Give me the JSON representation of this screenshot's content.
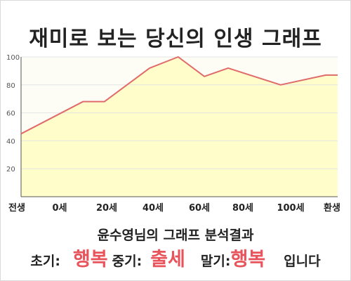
{
  "title": "재미로 보는 당신의 인생 그래프",
  "chart_data": {
    "type": "area",
    "x_tick_labels": [
      "전생",
      "0세",
      "20세",
      "40세",
      "60세",
      "80세",
      "100세",
      "환생"
    ],
    "x": [
      0,
      13,
      17.5,
      27,
      33,
      38.5,
      43.5,
      54.5,
      64,
      66.5
    ],
    "values": [
      45,
      68,
      68,
      92,
      100,
      86,
      92,
      80,
      87,
      87
    ],
    "ylim": [
      0,
      100
    ],
    "y_ticks": [
      20,
      40,
      60,
      80,
      100
    ],
    "grid": true,
    "colors": {
      "line": "#e06b6b",
      "fill": "#fffdc9",
      "grid": "#e4e4e4"
    }
  },
  "summary": {
    "heading": "윤수영님의 그래프 분석결과",
    "early_label": "초기:",
    "early_value": "행복",
    "middle_label": "중기:",
    "middle_value": "출세",
    "late_label": "말기:",
    "late_value": "행복",
    "ending": "입니다"
  }
}
